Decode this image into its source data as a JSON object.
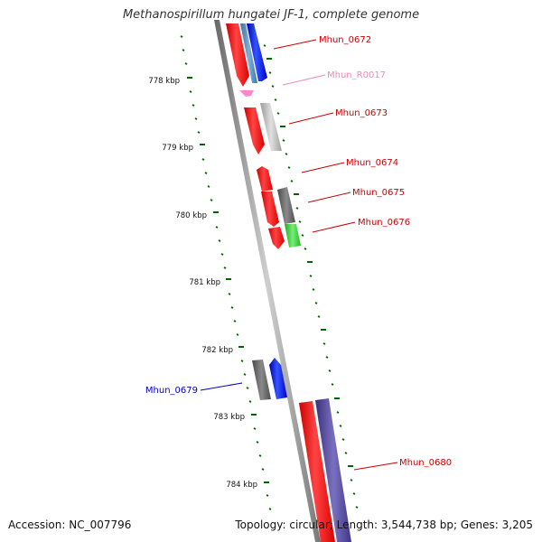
{
  "title": "Methanospirillum hungatei JF-1, complete genome",
  "footer": {
    "accession": "Accession: NC_007796",
    "summary": "Topology: circular; Length: 3,544,738 bp; Genes: 3,205"
  },
  "ruler": {
    "labels": [
      "778 kbp",
      "779 kbp",
      "780 kbp",
      "781 kbp",
      "782 kbp",
      "783 kbp",
      "784 kbp"
    ]
  },
  "genes": [
    {
      "name": "Mhun_0672",
      "color": "#cc0000"
    },
    {
      "name": "Mhun_R0017",
      "color": "#ee88bb"
    },
    {
      "name": "Mhun_0673",
      "color": "#cc0000"
    },
    {
      "name": "Mhun_0674",
      "color": "#cc0000"
    },
    {
      "name": "Mhun_0675",
      "color": "#cc0000"
    },
    {
      "name": "Mhun_0676",
      "color": "#cc0000"
    },
    {
      "name": "Mhun_0679",
      "color": "#0000bb"
    },
    {
      "name": "Mhun_0680",
      "color": "#cc0000"
    }
  ],
  "colors": {
    "cds": "#ff0000",
    "blue_feature": "#0000ff",
    "steel_feature": "#4682b4",
    "gray_feature": "#a8a8a8",
    "dark_gray_feature": "#5a5a5a",
    "green_feature": "#33cc33",
    "purple_feature": "#4b3f8c",
    "rna": "#ff88cc",
    "tick": "#006600",
    "backbone": "#888888"
  }
}
